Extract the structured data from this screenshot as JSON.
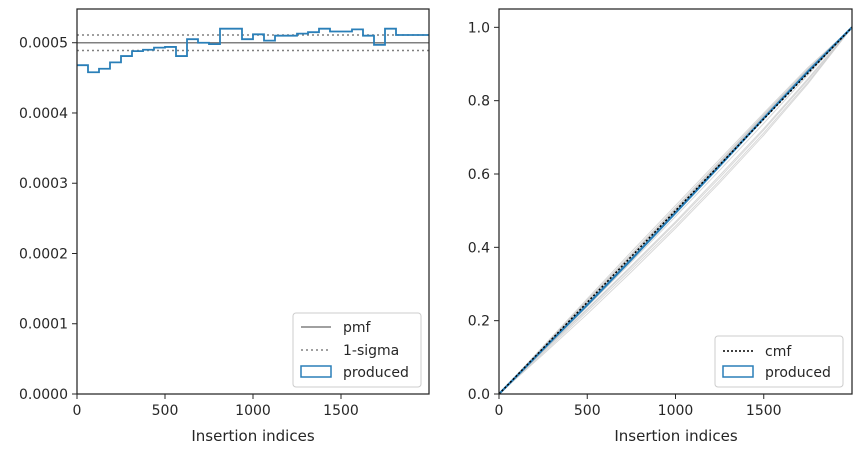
{
  "chart_data": [
    {
      "type": "histogram",
      "xlabel": "Insertion indices",
      "ylabel": "",
      "xlim": [
        0,
        2000
      ],
      "ylim": [
        0,
        0.000548
      ],
      "xticks": [
        0,
        500,
        1000,
        1500
      ],
      "xtick_labels": [
        "0",
        "500",
        "1000",
        "1500"
      ],
      "yticks": [
        0,
        0.0001,
        0.0002,
        0.0003,
        0.0004,
        0.0005
      ],
      "ytick_labels": [
        "0.0000",
        "0.0001",
        "0.0002",
        "0.0003",
        "0.0004",
        "0.0005"
      ],
      "legend": {
        "position": "lower right",
        "entries": [
          "pmf",
          "1-sigma",
          "produced"
        ]
      },
      "pmf": 0.0005,
      "sigma_band": [
        0.000489,
        0.000511
      ],
      "bin_width": 62.5,
      "bin_edges_start": 0,
      "series": [
        {
          "name": "produced",
          "style": "step",
          "color": "#2a7fb8",
          "values": [
            0.000468,
            0.000458,
            0.000463,
            0.000472,
            0.000481,
            0.000488,
            0.00049,
            0.000493,
            0.000494,
            0.000481,
            0.000505,
            0.0005,
            0.000498,
            0.00052,
            0.00052,
            0.000505,
            0.000512,
            0.000503,
            0.00051,
            0.00051,
            0.000513,
            0.000515,
            0.00052,
            0.000516,
            0.000516,
            0.000519,
            0.00051,
            0.000497,
            0.00052,
            0.000511,
            0.000511,
            0.000511
          ]
        }
      ]
    },
    {
      "type": "line",
      "xlabel": "Insertion indices",
      "ylabel": "",
      "xlim": [
        0,
        2000
      ],
      "ylim": [
        0,
        1.05
      ],
      "xticks": [
        0,
        500,
        1000,
        1500
      ],
      "xtick_labels": [
        "0",
        "500",
        "1000",
        "1500"
      ],
      "yticks": [
        0,
        0.2,
        0.4,
        0.6,
        0.8,
        1.0
      ],
      "ytick_labels": [
        "0.0",
        "0.2",
        "0.4",
        "0.6",
        "0.8",
        "1.0"
      ],
      "legend": {
        "position": "lower right",
        "entries": [
          "cmf",
          "produced"
        ]
      },
      "series": [
        {
          "name": "cmf",
          "style": "dotted",
          "color": "#000000",
          "x": [
            0,
            2000
          ],
          "y": [
            0,
            1.0
          ]
        },
        {
          "name": "produced",
          "style": "solid",
          "color": "#2a7fb8",
          "x": [
            0,
            250,
            500,
            750,
            1000,
            1250,
            1500,
            1750,
            2000
          ],
          "y": [
            0,
            0.122,
            0.243,
            0.367,
            0.494,
            0.622,
            0.752,
            0.879,
            1.0
          ]
        }
      ],
      "background_curves": {
        "color": "#c8c8c8",
        "curves": [
          [
            0,
            0.127,
            0.256,
            0.382,
            0.508,
            0.634,
            0.762,
            0.886,
            1.0
          ],
          [
            0,
            0.118,
            0.232,
            0.35,
            0.47,
            0.596,
            0.724,
            0.86,
            1.0
          ],
          [
            0,
            0.125,
            0.25,
            0.377,
            0.503,
            0.63,
            0.758,
            0.883,
            1.0
          ],
          [
            0,
            0.112,
            0.225,
            0.34,
            0.458,
            0.582,
            0.712,
            0.85,
            1.0
          ],
          [
            0,
            0.13,
            0.26,
            0.388,
            0.514,
            0.64,
            0.766,
            0.89,
            1.0
          ],
          [
            0,
            0.12,
            0.238,
            0.36,
            0.484,
            0.61,
            0.738,
            0.87,
            1.0
          ],
          [
            0,
            0.124,
            0.246,
            0.372,
            0.498,
            0.626,
            0.754,
            0.88,
            1.0
          ],
          [
            0,
            0.116,
            0.23,
            0.346,
            0.466,
            0.59,
            0.72,
            0.856,
            1.0
          ],
          [
            0,
            0.128,
            0.254,
            0.38,
            0.506,
            0.632,
            0.76,
            0.885,
            1.0
          ],
          [
            0,
            0.108,
            0.218,
            0.333,
            0.452,
            0.576,
            0.706,
            0.846,
            1.0
          ],
          [
            0,
            0.122,
            0.244,
            0.37,
            0.496,
            0.624,
            0.75,
            0.878,
            1.0
          ],
          [
            0,
            0.126,
            0.252,
            0.378,
            0.5,
            0.628,
            0.756,
            0.882,
            1.0
          ]
        ]
      }
    }
  ]
}
